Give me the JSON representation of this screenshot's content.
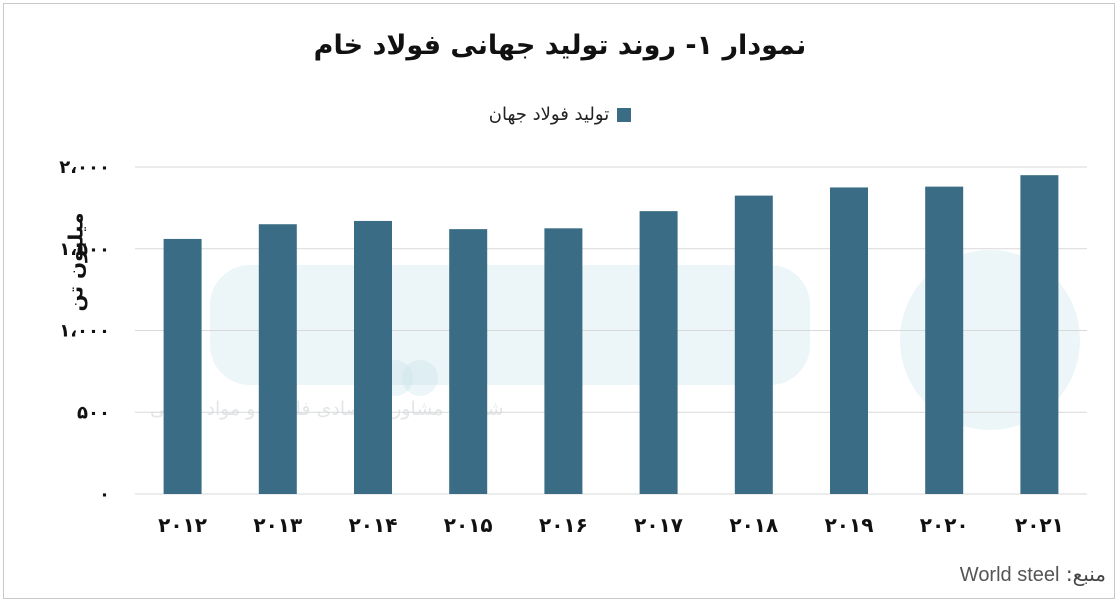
{
  "chart_data": {
    "type": "bar",
    "title": "نمودار ۱- روند تولید جهانی فولاد خام",
    "ylabel": "میلیون تن",
    "xlabel": "",
    "categories": [
      "۲۰۱۲",
      "۲۰۱۳",
      "۲۰۱۴",
      "۲۰۱۵",
      "۲۰۱۶",
      "۲۰۱۷",
      "۲۰۱۸",
      "۲۰۱۹",
      "۲۰۲۰",
      "۲۰۲۱"
    ],
    "series": [
      {
        "name": "تولید فولاد جهان",
        "values": [
          1560,
          1650,
          1670,
          1620,
          1625,
          1730,
          1825,
          1875,
          1880,
          1950
        ]
      }
    ],
    "ylim": [
      0,
      2000
    ],
    "yticks": [
      0,
      500,
      1000,
      1500,
      2000
    ],
    "ytick_labels": [
      "۰",
      "۵۰۰",
      "۱،۰۰۰",
      "۱،۵۰۰",
      "۲،۰۰۰"
    ],
    "grid": true,
    "legend_position": "top",
    "colors": {
      "bar": "#3a6d85",
      "grid": "#d9d9d9"
    }
  },
  "source": {
    "label": "منبع:",
    "value": "World steel"
  },
  "watermark": {
    "text": "شرکت مشاوره‌اقتصادی فلزات و مواد معدنی"
  }
}
